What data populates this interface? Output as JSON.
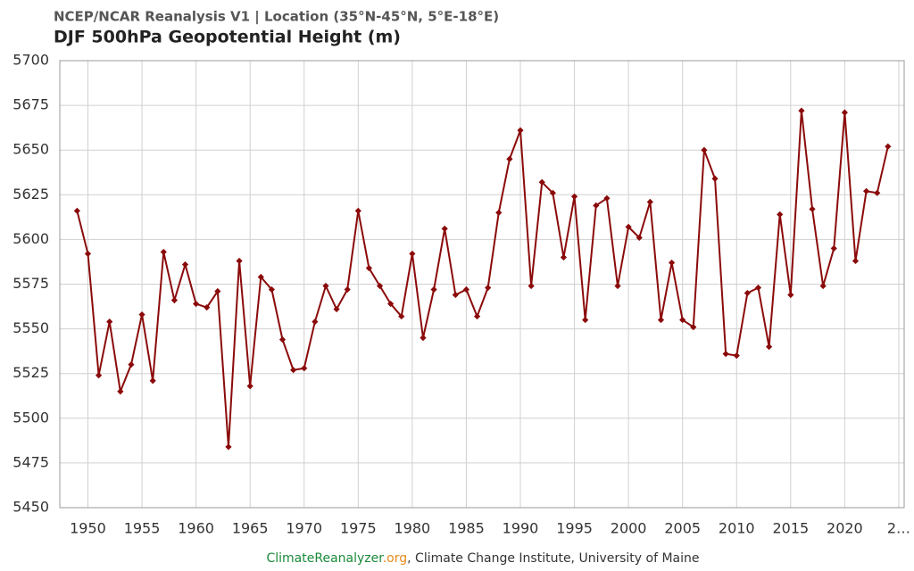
{
  "chart_data": {
    "type": "line",
    "subtitle": "NCEP/NCAR Reanalysis V1 | Location (35°N-45°N, 5°E-18°E)",
    "title": "DJF 500hPa Geopotential Height (m)",
    "x": [
      1949,
      1950,
      1951,
      1952,
      1953,
      1954,
      1955,
      1956,
      1957,
      1958,
      1959,
      1960,
      1961,
      1962,
      1963,
      1964,
      1965,
      1966,
      1967,
      1968,
      1969,
      1970,
      1971,
      1972,
      1973,
      1974,
      1975,
      1976,
      1977,
      1978,
      1979,
      1980,
      1981,
      1982,
      1983,
      1984,
      1985,
      1986,
      1987,
      1988,
      1989,
      1990,
      1991,
      1992,
      1993,
      1994,
      1995,
      1996,
      1997,
      1998,
      1999,
      2000,
      2001,
      2002,
      2003,
      2004,
      2005,
      2006,
      2007,
      2008,
      2009,
      2010,
      2011,
      2012,
      2013,
      2014,
      2015,
      2016,
      2017,
      2018,
      2019,
      2020,
      2021,
      2022,
      2023,
      2024
    ],
    "series": [
      {
        "name": "DJF 500hPa Geopotential Height",
        "color": "#8b0a0a",
        "values": [
          5616,
          5592,
          5524,
          5554,
          5515,
          5530,
          5558,
          5521,
          5593,
          5566,
          5586,
          5564,
          5562,
          5571,
          5484,
          5588,
          5518,
          5579,
          5572,
          5544,
          5527,
          5528,
          5554,
          5574,
          5561,
          5572,
          5616,
          5584,
          5574,
          5564,
          5557,
          5592,
          5545,
          5572,
          5606,
          5569,
          5572,
          5557,
          5573,
          5615,
          5645,
          5661,
          5574,
          5632,
          5626,
          5590,
          5624,
          5555,
          5619,
          5623,
          5574,
          5607,
          5601,
          5621,
          5555,
          5587,
          5555,
          5551,
          5650,
          5634,
          5536,
          5535,
          5570,
          5573,
          5540,
          5614,
          5569,
          5672,
          5617,
          5574,
          5595,
          5671,
          5588,
          5627,
          5626,
          5652
        ]
      }
    ],
    "xlim": [
      1947.4,
      2025.5
    ],
    "xticks": [
      1950,
      1955,
      1960,
      1965,
      1970,
      1975,
      1980,
      1985,
      1990,
      1995,
      2000,
      2005,
      2010,
      2015,
      2020,
      {
        "value": 2025,
        "label": "2…"
      }
    ],
    "ylim": [
      5450,
      5700
    ],
    "yticks": [
      5450,
      5475,
      5500,
      5525,
      5550,
      5575,
      5600,
      5625,
      5650,
      5675,
      5700
    ],
    "grid": true,
    "footer": {
      "site": "ClimateReanalyzer",
      "tld": ".org",
      "rest": ", Climate Change Institute, University of Maine"
    }
  }
}
